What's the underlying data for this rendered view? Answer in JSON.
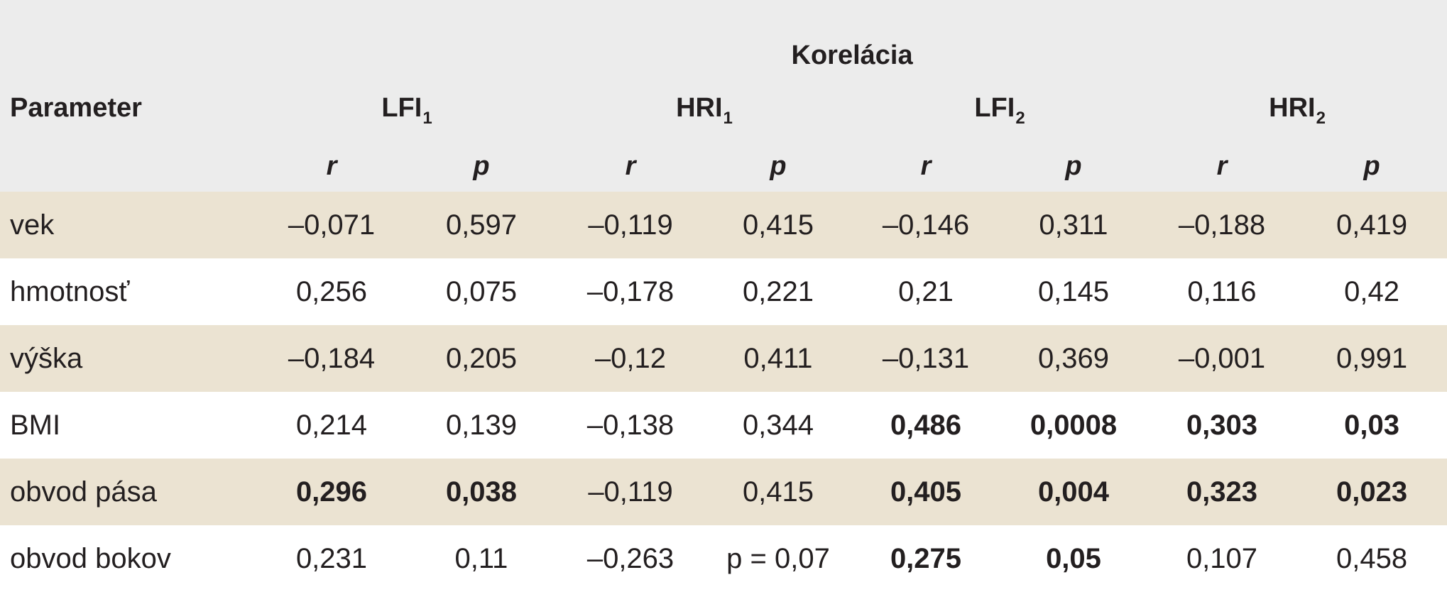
{
  "header": {
    "group_title": "Korelácia",
    "parameter_label": "Parameter",
    "columns": [
      {
        "base": "LFI",
        "sub": "1"
      },
      {
        "base": "HRI",
        "sub": "1"
      },
      {
        "base": "LFI",
        "sub": "2"
      },
      {
        "base": "HRI",
        "sub": "2"
      }
    ],
    "r_label": "r",
    "p_label": "p"
  },
  "rows": [
    {
      "label": "vek",
      "shaded": true,
      "cells": [
        {
          "v": "–0,071",
          "bold": false
        },
        {
          "v": "0,597",
          "bold": false
        },
        {
          "v": "–0,119",
          "bold": false
        },
        {
          "v": "0,415",
          "bold": false
        },
        {
          "v": "–0,146",
          "bold": false
        },
        {
          "v": "0,311",
          "bold": false
        },
        {
          "v": "–0,188",
          "bold": false
        },
        {
          "v": "0,419",
          "bold": false
        }
      ]
    },
    {
      "label": "hmotnosť",
      "shaded": false,
      "cells": [
        {
          "v": "0,256",
          "bold": false
        },
        {
          "v": "0,075",
          "bold": false
        },
        {
          "v": "–0,178",
          "bold": false
        },
        {
          "v": "0,221",
          "bold": false
        },
        {
          "v": "0,21",
          "bold": false
        },
        {
          "v": "0,145",
          "bold": false
        },
        {
          "v": "0,116",
          "bold": false
        },
        {
          "v": "0,42",
          "bold": false
        }
      ]
    },
    {
      "label": "výška",
      "shaded": true,
      "cells": [
        {
          "v": "–0,184",
          "bold": false
        },
        {
          "v": "0,205",
          "bold": false
        },
        {
          "v": "–0,12",
          "bold": false
        },
        {
          "v": "0,411",
          "bold": false
        },
        {
          "v": "–0,131",
          "bold": false
        },
        {
          "v": "0,369",
          "bold": false
        },
        {
          "v": "–0,001",
          "bold": false
        },
        {
          "v": "0,991",
          "bold": false
        }
      ]
    },
    {
      "label": "BMI",
      "shaded": false,
      "cells": [
        {
          "v": "0,214",
          "bold": false
        },
        {
          "v": "0,139",
          "bold": false
        },
        {
          "v": "–0,138",
          "bold": false
        },
        {
          "v": "0,344",
          "bold": false
        },
        {
          "v": "0,486",
          "bold": true
        },
        {
          "v": "0,0008",
          "bold": true
        },
        {
          "v": "0,303",
          "bold": true
        },
        {
          "v": "0,03",
          "bold": true
        }
      ]
    },
    {
      "label": "obvod pása",
      "shaded": true,
      "cells": [
        {
          "v": "0,296",
          "bold": true
        },
        {
          "v": "0,038",
          "bold": true
        },
        {
          "v": "–0,119",
          "bold": false
        },
        {
          "v": "0,415",
          "bold": false
        },
        {
          "v": "0,405",
          "bold": true
        },
        {
          "v": "0,004",
          "bold": true
        },
        {
          "v": "0,323",
          "bold": true
        },
        {
          "v": "0,023",
          "bold": true
        }
      ]
    },
    {
      "label": "obvod bokov",
      "shaded": false,
      "cells": [
        {
          "v": "0,231",
          "bold": false
        },
        {
          "v": "0,11",
          "bold": false
        },
        {
          "v": "–0,263",
          "bold": false
        },
        {
          "v": "p = 0,07",
          "bold": false
        },
        {
          "v": "0,275",
          "bold": true
        },
        {
          "v": "0,05",
          "bold": true
        },
        {
          "v": "0,107",
          "bold": false
        },
        {
          "v": "0,458",
          "bold": false
        }
      ]
    }
  ]
}
